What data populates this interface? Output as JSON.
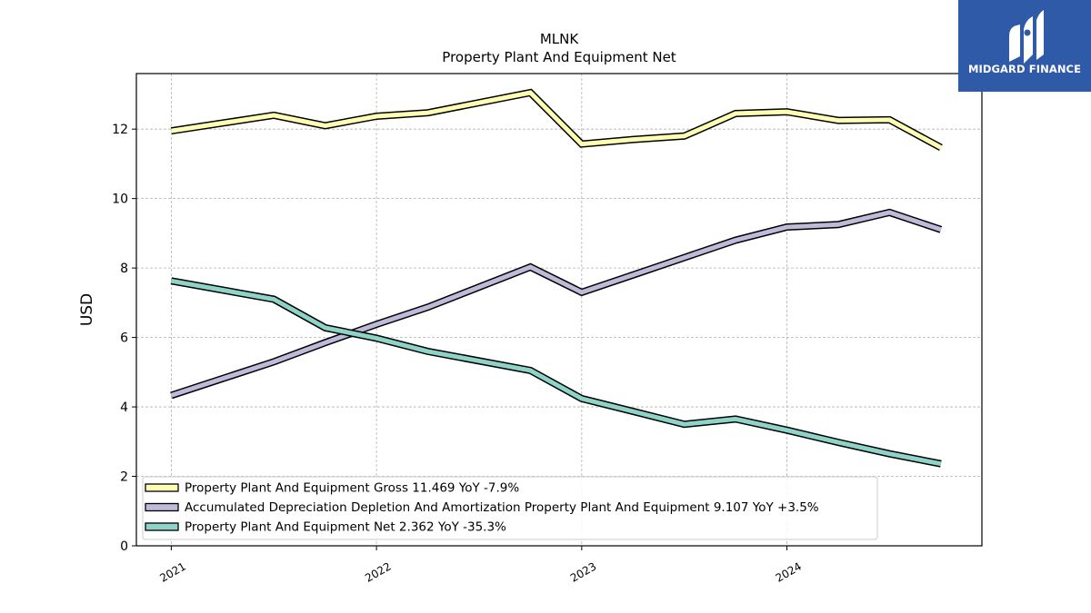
{
  "brand": {
    "name": "MIDGARD FINANCE",
    "color": "#2f5aa8"
  },
  "chart_data": {
    "type": "line",
    "title": "MLNK",
    "subtitle": "Property Plant And Equipment Net",
    "xlabel": "",
    "ylabel": "USD",
    "x_ticks": [
      "2021",
      "2022",
      "2023",
      "2024"
    ],
    "x_tick_values": [
      2021.0,
      2022.0,
      2023.0,
      2024.0
    ],
    "xlim": [
      2020.83,
      2024.95
    ],
    "ylim": [
      0,
      13.6
    ],
    "y_ticks": [
      0,
      2,
      4,
      6,
      8,
      10,
      12
    ],
    "grid": true,
    "legend_position": "lower-left",
    "x": [
      2021.0,
      2021.5,
      2021.75,
      2022.0,
      2022.25,
      2022.75,
      2023.0,
      2023.25,
      2023.5,
      2023.75,
      2024.0,
      2024.25,
      2024.5,
      2024.75
    ],
    "series": [
      {
        "name": "Property Plant And Equipment Gross",
        "legend_label": "Property Plant And Equipment Gross  11.469 YoY -7.9%",
        "color": "#ffffb3",
        "values": [
          11.95,
          12.4,
          12.1,
          12.37,
          12.47,
          13.05,
          11.57,
          11.7,
          11.8,
          12.45,
          12.5,
          12.25,
          12.27,
          11.469
        ]
      },
      {
        "name": "Accumulated Depreciation Depletion And Amortization Property Plant And Equipment",
        "legend_label": "Accumulated Depreciation Depletion And Amortization Property Plant And Equipment  9.107 YoY +3.5%",
        "color": "#bebada",
        "values": [
          4.33,
          5.3,
          5.85,
          6.38,
          6.87,
          8.03,
          7.3,
          7.8,
          8.3,
          8.8,
          9.18,
          9.25,
          9.6,
          9.107
        ]
      },
      {
        "name": "Property Plant And Equipment Net",
        "legend_label": "Property Plant And Equipment Net  2.362 YoY -35.3%",
        "color": "#8dd3c7",
        "values": [
          7.63,
          7.1,
          6.28,
          5.98,
          5.6,
          5.05,
          4.24,
          3.87,
          3.5,
          3.65,
          3.33,
          2.98,
          2.65,
          2.362
        ]
      }
    ]
  }
}
